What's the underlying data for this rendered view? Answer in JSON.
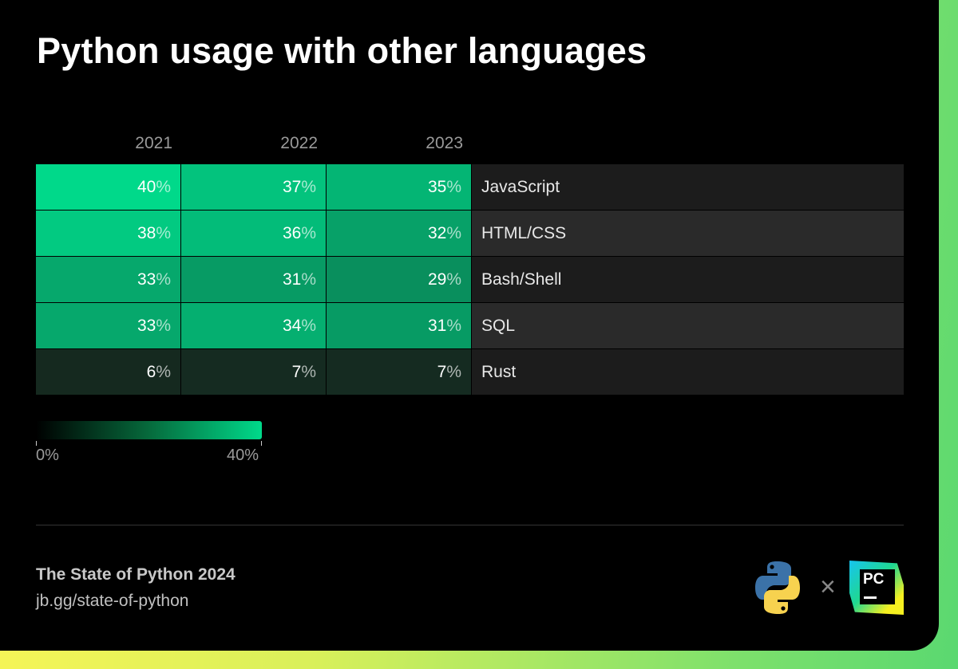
{
  "title": "Python usage with other languages",
  "chart_data": {
    "type": "heatmap",
    "title": "Python usage with other languages",
    "columns": [
      "2021",
      "2022",
      "2023"
    ],
    "rows": [
      "JavaScript",
      "HTML/CSS",
      "Bash/Shell",
      "SQL",
      "Rust"
    ],
    "values": [
      [
        40,
        37,
        35
      ],
      [
        38,
        36,
        32
      ],
      [
        33,
        31,
        29
      ],
      [
        33,
        34,
        31
      ],
      [
        6,
        7,
        7
      ]
    ],
    "unit": "%",
    "color_scale": {
      "min": 0,
      "max": 40,
      "min_label": "0%",
      "max_label": "40%",
      "min_color": "#000000",
      "max_color": "#00d98a"
    }
  },
  "footer": {
    "title": "The State of Python 2024",
    "link": "jb.gg/state-of-python",
    "times": "×"
  },
  "logos": [
    "python-logo",
    "pycharm-logo"
  ],
  "pycharm_text": "PC"
}
